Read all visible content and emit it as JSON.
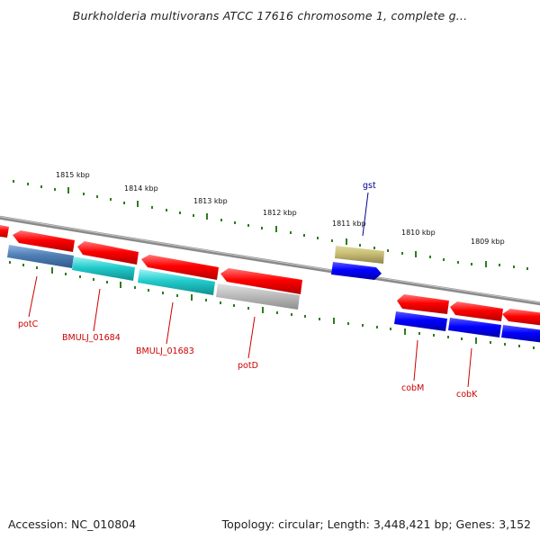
{
  "title": "Burkholderia multivorans ATCC 17616 chromosome 1, complete g...",
  "footer": {
    "accession": "Accession: NC_010804",
    "topology": "Topology: circular; Length: 3,448,421 bp; Genes: 3,152"
  },
  "colors": {
    "forward_gene": "#ff0000",
    "reverse_gene": "#0000ff",
    "tick": "#2e7d1e",
    "backbone": "#8a8a8a",
    "label_forward": "#cc0000",
    "label_other": "#00008b"
  },
  "kbp_ticks": [
    "1815 kbp",
    "1814 kbp",
    "1813 kbp",
    "1812 kbp",
    "1811 kbp",
    "1810 kbp",
    "1809 kbp"
  ],
  "genes": [
    {
      "label": "potC",
      "label_color": "#cc0000"
    },
    {
      "label": "BMULJ_01684",
      "label_color": "#cc0000"
    },
    {
      "label": "BMULJ_01683",
      "label_color": "#cc0000"
    },
    {
      "label": "potD",
      "label_color": "#cc0000"
    },
    {
      "label": "gst",
      "label_color": "#00008b"
    },
    {
      "label": "cobM",
      "label_color": "#cc0000"
    },
    {
      "label": "cobK",
      "label_color": "#cc0000"
    }
  ]
}
